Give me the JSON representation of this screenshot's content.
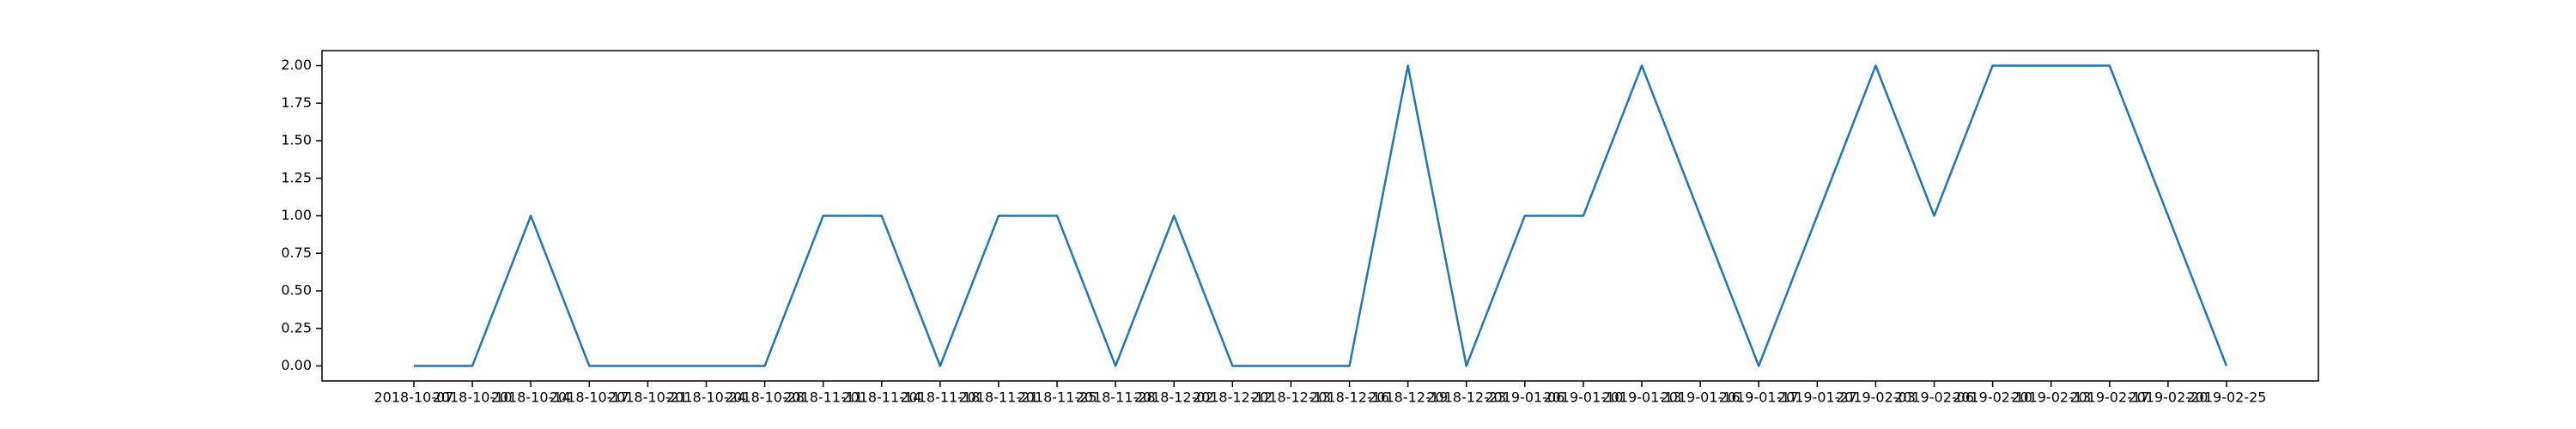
{
  "chart_data": {
    "type": "line",
    "categories": [
      "2018-10-07",
      "2018-10-10",
      "2018-10-14",
      "2018-10-17",
      "2018-10-21",
      "2018-10-24",
      "2018-10-28",
      "2018-11-11",
      "2018-11-14",
      "2018-11-18",
      "2018-11-21",
      "2018-11-25",
      "2018-11-28",
      "2018-12-02",
      "2018-12-12",
      "2018-12-13",
      "2018-12-16",
      "2018-12-19",
      "2018-12-23",
      "2019-01-06",
      "2019-01-10",
      "2019-01-13",
      "2019-01-16",
      "2019-01-17",
      "2019-01-27",
      "2019-02-03",
      "2019-02-06",
      "2019-02-10",
      "2019-02-13",
      "2019-02-17",
      "2019-02-20",
      "2019-02-25"
    ],
    "series": [
      {
        "color": "#1f77b4",
        "values": [
          0,
          0,
          1,
          0,
          0,
          0,
          0,
          1,
          1,
          0,
          1,
          1,
          0,
          1,
          0,
          0,
          0,
          2,
          0,
          1,
          1,
          2,
          1,
          0,
          1,
          2,
          1,
          2,
          2,
          2,
          1,
          0
        ]
      }
    ],
    "ylim": [
      -0.1,
      2.1
    ],
    "yticks": [
      {
        "value": 0,
        "label": "0.00"
      },
      {
        "value": 0.25,
        "label": "0.25"
      },
      {
        "value": 0.5,
        "label": "0.50"
      },
      {
        "value": 0.75,
        "label": "0.75"
      },
      {
        "value": 1,
        "label": "1.00"
      },
      {
        "value": 1.25,
        "label": "1.25"
      },
      {
        "value": 1.5,
        "label": "1.50"
      },
      {
        "value": 1.75,
        "label": "1.75"
      },
      {
        "value": 2,
        "label": "2.00"
      }
    ],
    "grid": false
  }
}
